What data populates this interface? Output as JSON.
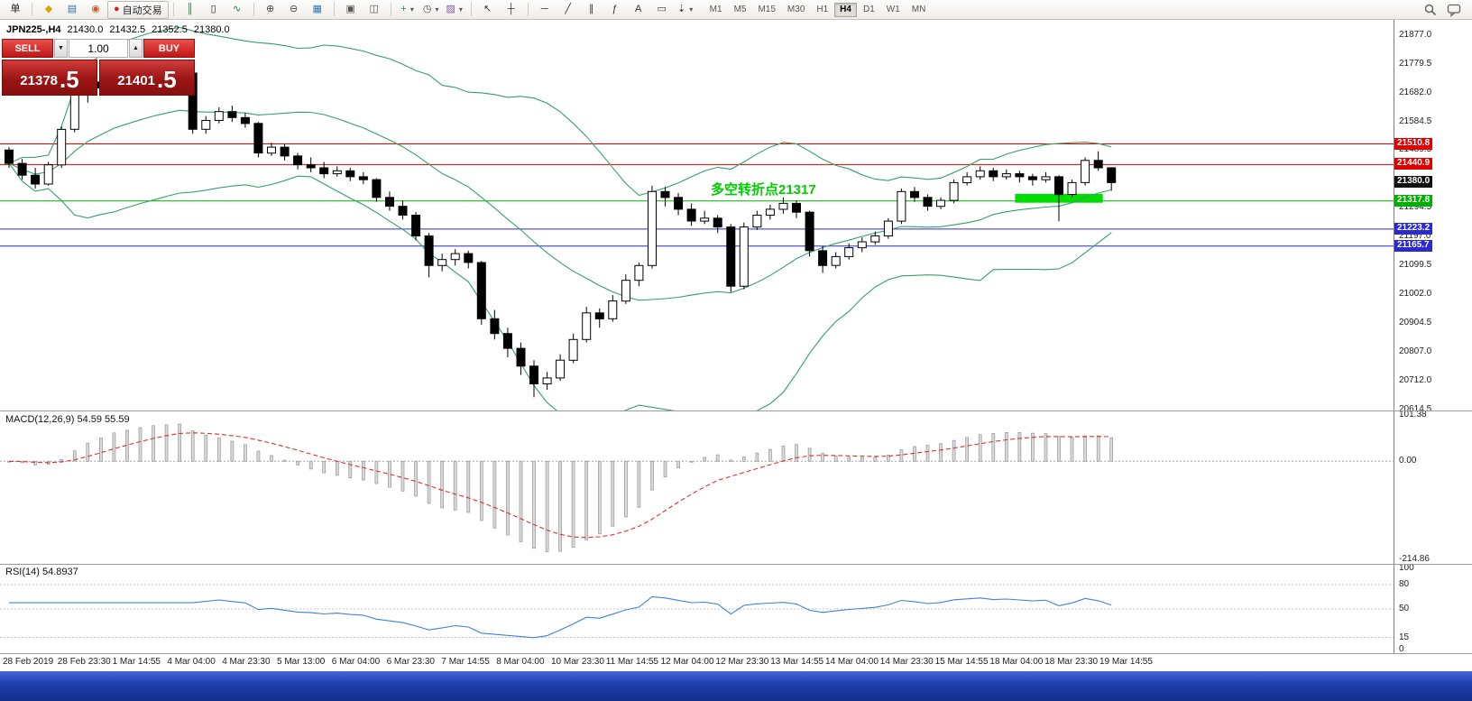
{
  "toolbar": {
    "timeframes": [
      "M1",
      "M5",
      "M15",
      "M30",
      "H1",
      "H4",
      "D1",
      "W1",
      "MN"
    ],
    "active_timeframe": "H4",
    "groups": [
      [
        {
          "name": "orders-menu-button",
          "icon": "orders-menu-icon",
          "glyph": "单",
          "color": "#222222"
        }
      ],
      [
        {
          "name": "new-order-button",
          "icon": "new-order-icon",
          "glyph": "◆",
          "color": "#dba400"
        },
        {
          "name": "new-chart-button",
          "icon": "new-chart-icon",
          "glyph": "▤",
          "color": "#3a6ea5"
        },
        {
          "name": "profiles-button",
          "icon": "profiles-icon",
          "glyph": "◉",
          "color": "#c06030"
        },
        {
          "name": "auto-trading-button",
          "icon": "auto-trading-icon",
          "glyph": "●",
          "color": "#d42222",
          "label": "自动交易"
        }
      ],
      [
        {
          "name": "bar-chart-button",
          "icon": "bar-chart-icon",
          "glyph": "║",
          "color": "#1f7a33"
        },
        {
          "name": "candlestick-chart-button",
          "icon": "candlestick-chart-icon",
          "glyph": "▯",
          "color": "#222222"
        },
        {
          "name": "line-chart-button",
          "icon": "line-chart-icon",
          "glyph": "∿",
          "color": "#1f7a33"
        }
      ],
      [
        {
          "name": "zoom-in-button",
          "icon": "zoom-in-icon",
          "glyph": "⊕",
          "color": "#444444"
        },
        {
          "name": "zoom-out-button",
          "icon": "zoom-out-icon",
          "glyph": "⊖",
          "color": "#444444"
        },
        {
          "name": "market-watch-button",
          "icon": "grid-icon",
          "glyph": "▦",
          "color": "#2a7ab5"
        }
      ],
      [
        {
          "name": "tile-windows-button",
          "icon": "tile-windows-icon",
          "glyph": "▣",
          "color": "#555555"
        },
        {
          "name": "cascade-windows-button",
          "icon": "cascade-windows-icon",
          "glyph": "◫",
          "color": "#555555"
        }
      ],
      [
        {
          "name": "indicators-button",
          "icon": "add-indicator-icon",
          "glyph": "+",
          "color": "#1e9e3e",
          "caret": true
        },
        {
          "name": "periods-button",
          "icon": "clock-icon",
          "glyph": "◷",
          "color": "#444444",
          "caret": true
        },
        {
          "name": "templates-button",
          "icon": "template-icon",
          "glyph": "▨",
          "color": "#7a5c9e",
          "caret": true
        }
      ],
      [
        {
          "name": "cursor-button",
          "icon": "cursor-icon",
          "glyph": "↖",
          "color": "#333333"
        },
        {
          "name": "crosshair-button",
          "icon": "crosshair-icon",
          "glyph": "┼",
          "color": "#333333"
        }
      ],
      [
        {
          "name": "horizontal-line-button",
          "icon": "horizontal-line-icon",
          "glyph": "─",
          "color": "#333333"
        },
        {
          "name": "trendline-button",
          "icon": "trendline-icon",
          "glyph": "╱",
          "color": "#333333"
        },
        {
          "name": "channel-button",
          "icon": "channel-icon",
          "glyph": "∥",
          "color": "#333333"
        },
        {
          "name": "fibonacci-button",
          "icon": "fibonacci-icon",
          "glyph": "ƒ",
          "color": "#333333"
        },
        {
          "name": "text-button",
          "icon": "text-icon",
          "glyph": "A",
          "color": "#333333"
        },
        {
          "name": "text-label-button",
          "icon": "text-label-icon",
          "glyph": "▭",
          "color": "#333333"
        },
        {
          "name": "arrows-button",
          "icon": "arrows-icon",
          "glyph": "⇣",
          "color": "#333333",
          "caret": true
        }
      ]
    ]
  },
  "chart_header": {
    "symbol": "JPN225-,H4",
    "open": "21430.0",
    "high": "21432.5",
    "low": "21352.5",
    "close": "21380.0"
  },
  "trade_panel": {
    "sell_label": "SELL",
    "buy_label": "BUY",
    "volume": "1.00",
    "sell_price_main": "21378",
    "sell_price_frac": ".5",
    "buy_price_main": "21401",
    "buy_price_frac": ".5"
  },
  "annotation": {
    "text": "多空转折点21317",
    "color": "#00cc00"
  },
  "indicators": {
    "macd": {
      "label": "MACD(12,26,9) 54.59 55.59"
    },
    "rsi": {
      "label": "RSI(14) 54.8937"
    }
  },
  "chart_data": {
    "type": "candlestick",
    "symbol": "JPN225-",
    "timeframe": "H4",
    "price_axis": {
      "min": 20610,
      "max": 21930,
      "labels": [
        "21877.0",
        "21779.5",
        "21682.0",
        "21584.5",
        "21489.5",
        "21294.5",
        "21197.0",
        "21099.5",
        "21002.0",
        "20904.5",
        "20807.0",
        "20712.0",
        "20614.5"
      ]
    },
    "time_labels": [
      "28 Feb 2019",
      "28 Feb 23:30",
      "1 Mar 14:55",
      "4 Mar 04:00",
      "4 Mar 23:30",
      "5 Mar 13:00",
      "6 Mar 04:00",
      "6 Mar 23:30",
      "7 Mar 14:55",
      "8 Mar 04:00",
      "10 Mar 23:30",
      "11 Mar 14:55",
      "12 Mar 04:00",
      "12 Mar 23:30",
      "13 Mar 14:55",
      "14 Mar 04:00",
      "14 Mar 23:30",
      "15 Mar 14:55",
      "18 Mar 04:00",
      "18 Mar 23:30",
      "19 Mar 14:55"
    ],
    "levels": [
      {
        "value": 21510.8,
        "label": "21510.8",
        "color": "#e00000",
        "line": true
      },
      {
        "value": 21440.9,
        "label": "21440.9",
        "color": "#e00000",
        "line": true
      },
      {
        "value": 21380.0,
        "label": "21380.0",
        "color": "#111111",
        "line": false
      },
      {
        "value": 21317.8,
        "label": "21317.8",
        "color": "#00b000",
        "line": true
      },
      {
        "value": 21223.2,
        "label": "21223.2",
        "color": "#2a2ace",
        "line": true
      },
      {
        "value": 21165.7,
        "label": "21165.7",
        "color": "#2a2ace",
        "line": true
      }
    ],
    "highlight_rect": {
      "from_index": 77,
      "to_index": 83,
      "price_top": 21342,
      "price_bottom": 21312,
      "color": "#00dd00"
    },
    "bollinger": {
      "period": 20,
      "deviation": 2,
      "color": "#35a06a"
    },
    "macd": {
      "fast": 12,
      "slow": 26,
      "signal": 9,
      "signal_color": "#e03030",
      "hist_color": "#d9d9d9",
      "scale": [
        "101.38",
        "0.00",
        "-214.86"
      ]
    },
    "rsi": {
      "period": 14,
      "color": "#3f83d6",
      "levels": [
        80,
        50,
        15
      ],
      "scale": [
        "100",
        "80",
        "50",
        "15",
        "0"
      ]
    },
    "candles": [
      [
        21490,
        21500,
        21430,
        21445
      ],
      [
        21445,
        21460,
        21390,
        21405
      ],
      [
        21405,
        21430,
        21360,
        21375
      ],
      [
        21375,
        21450,
        21370,
        21440
      ],
      [
        21440,
        21570,
        21430,
        21560
      ],
      [
        21560,
        21700,
        21550,
        21690
      ],
      [
        21690,
        21730,
        21650,
        21720
      ],
      [
        21720,
        21740,
        21680,
        21700
      ],
      [
        21700,
        21770,
        21695,
        21740
      ],
      [
        21740,
        21750,
        21690,
        21710
      ],
      [
        21710,
        21740,
        21700,
        21730
      ],
      [
        21730,
        21760,
        21715,
        21745
      ],
      [
        21745,
        21755,
        21720,
        21735
      ],
      [
        21735,
        21765,
        21725,
        21750
      ],
      [
        21750,
        21755,
        21545,
        21560
      ],
      [
        21560,
        21605,
        21545,
        21590
      ],
      [
        21590,
        21635,
        21580,
        21620
      ],
      [
        21620,
        21640,
        21585,
        21600
      ],
      [
        21600,
        21615,
        21565,
        21580
      ],
      [
        21580,
        21585,
        21465,
        21480
      ],
      [
        21480,
        21515,
        21470,
        21500
      ],
      [
        21500,
        21510,
        21455,
        21470
      ],
      [
        21470,
        21480,
        21425,
        21440
      ],
      [
        21440,
        21465,
        21415,
        21430
      ],
      [
        21430,
        21450,
        21395,
        21410
      ],
      [
        21410,
        21435,
        21400,
        21420
      ],
      [
        21420,
        21430,
        21385,
        21400
      ],
      [
        21400,
        21415,
        21375,
        21390
      ],
      [
        21390,
        21395,
        21315,
        21330
      ],
      [
        21330,
        21350,
        21285,
        21300
      ],
      [
        21300,
        21320,
        21255,
        21270
      ],
      [
        21270,
        21280,
        21185,
        21200
      ],
      [
        21200,
        21210,
        21060,
        21100
      ],
      [
        21100,
        21140,
        21080,
        21120
      ],
      [
        21120,
        21155,
        21100,
        21140
      ],
      [
        21140,
        21150,
        21090,
        21110
      ],
      [
        21110,
        21115,
        20900,
        20920
      ],
      [
        20920,
        20950,
        20850,
        20870
      ],
      [
        20870,
        20890,
        20790,
        20820
      ],
      [
        20820,
        20840,
        20730,
        20760
      ],
      [
        20760,
        20780,
        20655,
        20700
      ],
      [
        20700,
        20740,
        20680,
        20720
      ],
      [
        20720,
        20800,
        20710,
        20780
      ],
      [
        20780,
        20870,
        20770,
        20850
      ],
      [
        20850,
        20960,
        20840,
        20940
      ],
      [
        20940,
        20955,
        20890,
        20920
      ],
      [
        20920,
        21000,
        20910,
        20980
      ],
      [
        20980,
        21070,
        20970,
        21050
      ],
      [
        21050,
        21110,
        21030,
        21100
      ],
      [
        21100,
        21370,
        21090,
        21350
      ],
      [
        21350,
        21365,
        21300,
        21330
      ],
      [
        21330,
        21345,
        21270,
        21290
      ],
      [
        21290,
        21310,
        21235,
        21250
      ],
      [
        21250,
        21285,
        21240,
        21260
      ],
      [
        21260,
        21270,
        21210,
        21230
      ],
      [
        21230,
        21240,
        21010,
        21030
      ],
      [
        21030,
        21245,
        21020,
        21230
      ],
      [
        21230,
        21285,
        21220,
        21270
      ],
      [
        21270,
        21305,
        21255,
        21290
      ],
      [
        21290,
        21330,
        21275,
        21310
      ],
      [
        21310,
        21320,
        21260,
        21280
      ],
      [
        21280,
        21285,
        21130,
        21150
      ],
      [
        21150,
        21165,
        21075,
        21100
      ],
      [
        21100,
        21145,
        21090,
        21130
      ],
      [
        21130,
        21175,
        21120,
        21160
      ],
      [
        21160,
        21195,
        21145,
        21180
      ],
      [
        21180,
        21215,
        21170,
        21200
      ],
      [
        21200,
        21260,
        21190,
        21250
      ],
      [
        21250,
        21360,
        21240,
        21350
      ],
      [
        21350,
        21365,
        21315,
        21330
      ],
      [
        21330,
        21340,
        21285,
        21300
      ],
      [
        21300,
        21330,
        21290,
        21320
      ],
      [
        21320,
        21390,
        21310,
        21380
      ],
      [
        21380,
        21415,
        21370,
        21400
      ],
      [
        21400,
        21435,
        21390,
        21420
      ],
      [
        21420,
        21430,
        21385,
        21400
      ],
      [
        21400,
        21425,
        21390,
        21410
      ],
      [
        21410,
        21420,
        21380,
        21400
      ],
      [
        21400,
        21410,
        21370,
        21390
      ],
      [
        21390,
        21415,
        21380,
        21400
      ],
      [
        21400,
        21405,
        21250,
        21340
      ],
      [
        21340,
        21390,
        21330,
        21380
      ],
      [
        21380,
        21465,
        21370,
        21455
      ],
      [
        21455,
        21486,
        21420,
        21430
      ],
      [
        21430,
        21432.5,
        21352.5,
        21380
      ]
    ]
  }
}
